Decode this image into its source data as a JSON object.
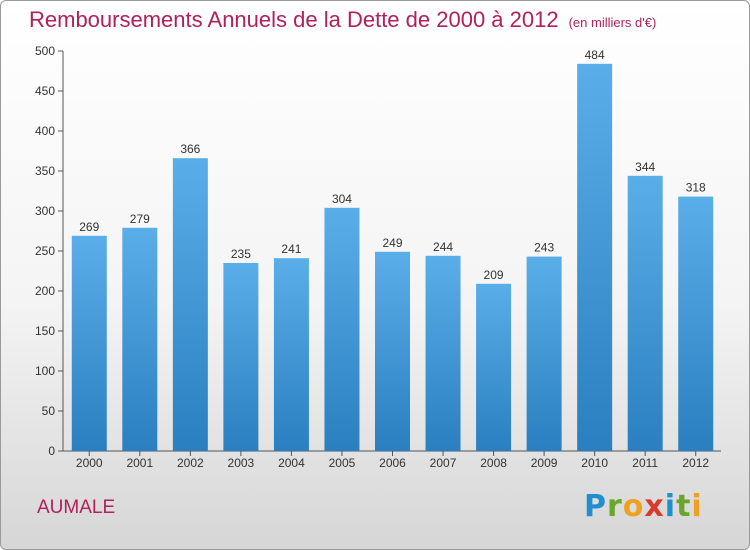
{
  "header": {
    "title": "Remboursements Annuels de la Dette de 2000 à 2012",
    "unit": "(en milliers d'€)"
  },
  "footer": {
    "city": "AUMALE",
    "logo_text": "Proxiti"
  },
  "chart_data": {
    "type": "bar",
    "title": "Remboursements Annuels de la Dette de 2000 à 2012",
    "subtitle": "(en milliers d'€)",
    "xlabel": "",
    "ylabel": "",
    "categories": [
      "2000",
      "2001",
      "2002",
      "2003",
      "2004",
      "2005",
      "2006",
      "2007",
      "2008",
      "2009",
      "2010",
      "2011",
      "2012"
    ],
    "values": [
      269,
      279,
      366,
      235,
      241,
      304,
      249,
      244,
      209,
      243,
      484,
      344,
      318
    ],
    "ylim": [
      0,
      500
    ],
    "yticks": [
      0,
      50,
      100,
      150,
      200,
      250,
      300,
      350,
      400,
      450,
      500
    ],
    "grid": false,
    "legend": "none",
    "bar_color_top": "#5aaee8",
    "bar_color_bottom": "#2a7fc0"
  }
}
